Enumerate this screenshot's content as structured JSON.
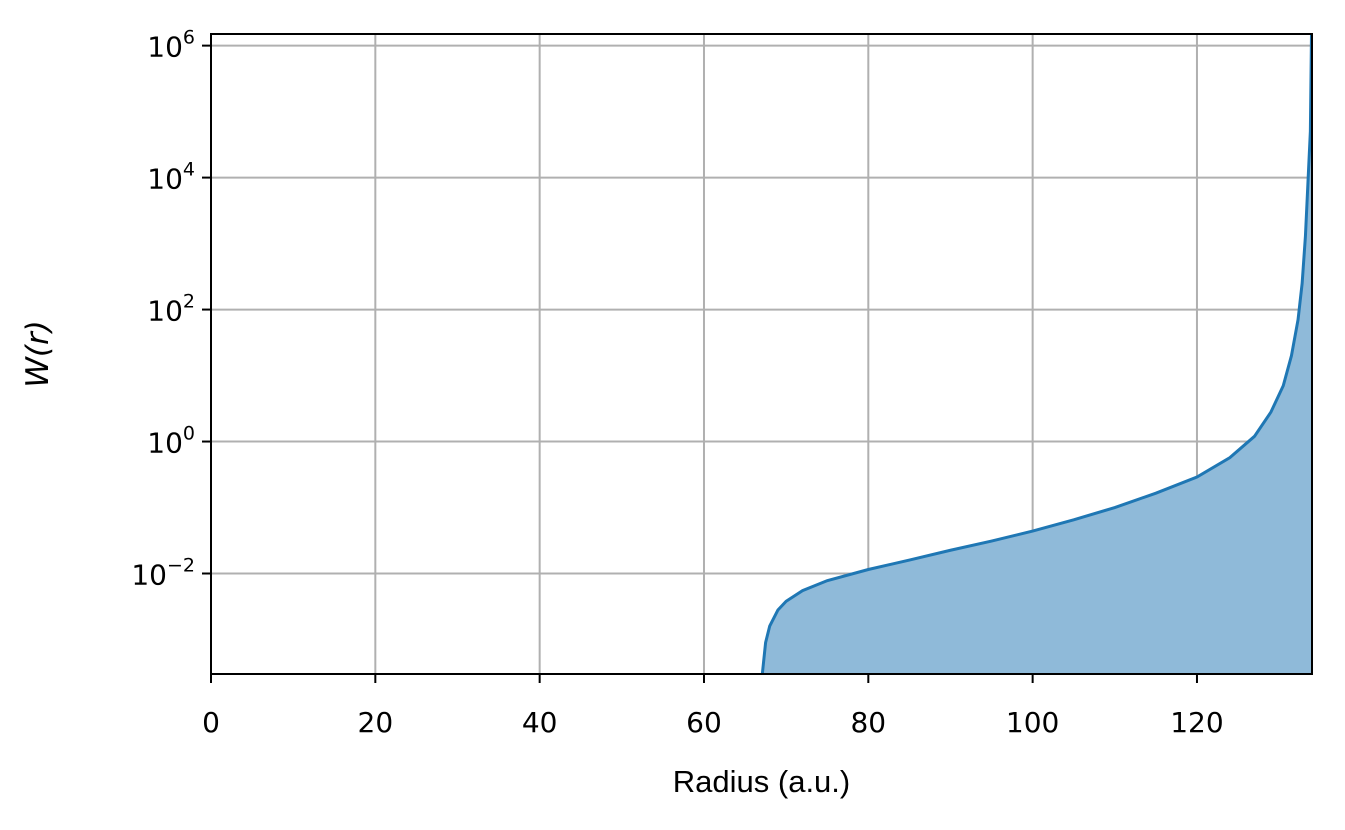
{
  "chart_data": {
    "type": "area",
    "xlabel": "Radius (a.u.)",
    "ylabel": "W(r)",
    "y_scale": "log",
    "grid": true,
    "xlim": [
      0,
      134
    ],
    "ylim": [
      0.0003,
      1500000
    ],
    "x_ticks": [
      0,
      20,
      40,
      60,
      80,
      100,
      120
    ],
    "x_tick_labels": [
      "0",
      "20",
      "40",
      "60",
      "80",
      "100",
      "120"
    ],
    "y_ticks": [
      0.01,
      1,
      100,
      10000,
      1000000
    ],
    "y_tick_labels": [
      {
        "base": "10",
        "exp": "−2"
      },
      {
        "base": "10",
        "exp": "0"
      },
      {
        "base": "10",
        "exp": "2"
      },
      {
        "base": "10",
        "exp": "4"
      },
      {
        "base": "10",
        "exp": "6"
      }
    ],
    "colors": {
      "line": "#1f77b4",
      "fill": "#8fbad9",
      "grid": "#b0b0b0"
    },
    "series": [
      {
        "x": [
          67.1,
          67.5,
          68,
          69,
          70,
          72,
          75,
          80,
          85,
          90,
          95,
          100,
          105,
          110,
          115,
          120,
          124,
          127,
          129,
          130.5,
          131.5,
          132.3,
          132.8,
          133.2,
          133.5,
          133.8
        ],
        "y": [
          0.0003,
          0.0009,
          0.0016,
          0.0028,
          0.0038,
          0.0055,
          0.0078,
          0.0115,
          0.016,
          0.0225,
          0.031,
          0.044,
          0.065,
          0.1,
          0.165,
          0.29,
          0.57,
          1.2,
          2.8,
          7.0,
          20,
          70,
          250,
          1300,
          8000,
          50000
        ]
      }
    ]
  }
}
